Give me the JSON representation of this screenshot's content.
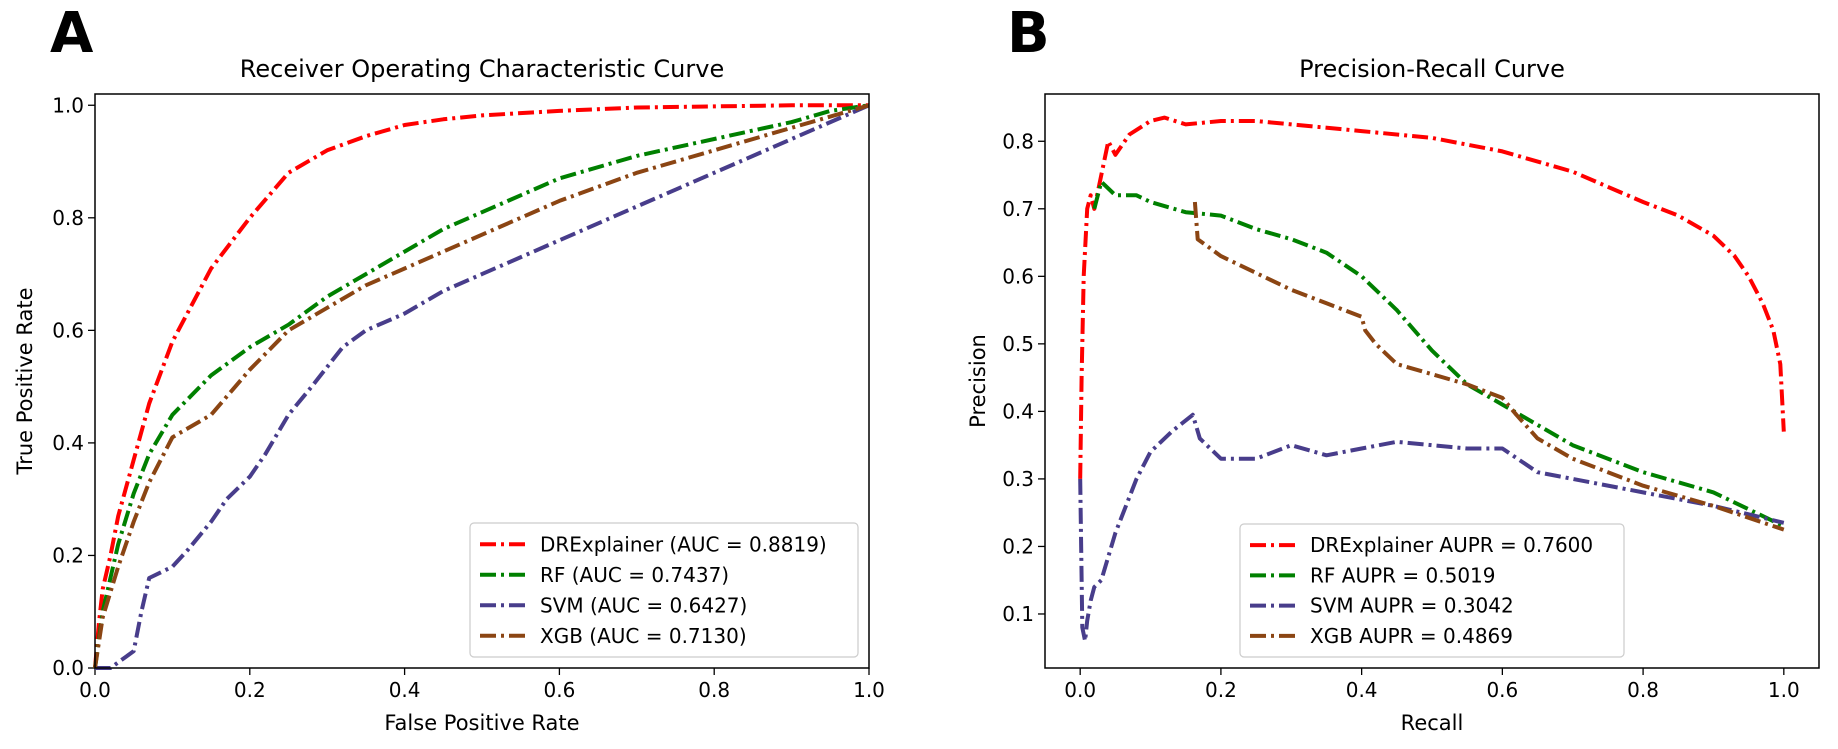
{
  "chart_data": [
    {
      "panel": "A",
      "type": "line",
      "title": "Receiver Operating Characteristic Curve",
      "xlabel": "False Positive Rate",
      "ylabel": "True Positive Rate",
      "xlim": [
        0.0,
        1.0
      ],
      "ylim": [
        0.0,
        1.02
      ],
      "xticks": [
        0.0,
        0.2,
        0.4,
        0.6,
        0.8,
        1.0
      ],
      "yticks": [
        0.0,
        0.2,
        0.4,
        0.6,
        0.8,
        1.0
      ],
      "xtick_labels": [
        "0.0",
        "0.2",
        "0.4",
        "0.6",
        "0.8",
        "1.0"
      ],
      "ytick_labels": [
        "0.0",
        "0.2",
        "0.4",
        "0.6",
        "0.8",
        "1.0"
      ],
      "grid": false,
      "legend_position": "lower-right",
      "series": [
        {
          "name": "DRExplainer (AUC = 0.8819)",
          "color": "#ff0000",
          "x": [
            0.0,
            0.005,
            0.01,
            0.02,
            0.03,
            0.05,
            0.07,
            0.1,
            0.15,
            0.2,
            0.25,
            0.3,
            0.35,
            0.4,
            0.45,
            0.5,
            0.6,
            0.7,
            0.8,
            0.9,
            1.0
          ],
          "y": [
            0.0,
            0.08,
            0.14,
            0.2,
            0.27,
            0.37,
            0.47,
            0.58,
            0.71,
            0.8,
            0.88,
            0.92,
            0.945,
            0.965,
            0.975,
            0.982,
            0.99,
            0.996,
            0.998,
            1.0,
            1.0
          ]
        },
        {
          "name": "RF (AUC = 0.7437)",
          "color": "#008000",
          "x": [
            0.0,
            0.01,
            0.03,
            0.05,
            0.07,
            0.1,
            0.15,
            0.2,
            0.25,
            0.3,
            0.35,
            0.4,
            0.45,
            0.5,
            0.55,
            0.6,
            0.7,
            0.8,
            0.9,
            0.95,
            1.0
          ],
          "y": [
            0.0,
            0.1,
            0.22,
            0.31,
            0.38,
            0.45,
            0.52,
            0.57,
            0.61,
            0.66,
            0.7,
            0.74,
            0.78,
            0.81,
            0.84,
            0.87,
            0.91,
            0.94,
            0.97,
            0.99,
            1.0
          ]
        },
        {
          "name": "SVM (AUC = 0.6427)",
          "color": "#483d8b",
          "x": [
            0.0,
            0.02,
            0.04,
            0.05,
            0.06,
            0.07,
            0.1,
            0.12,
            0.15,
            0.17,
            0.2,
            0.22,
            0.25,
            0.28,
            0.32,
            0.35,
            0.4,
            0.45,
            0.5,
            0.6,
            0.7,
            0.8,
            0.9,
            1.0
          ],
          "y": [
            0.0,
            0.0,
            0.02,
            0.03,
            0.1,
            0.16,
            0.18,
            0.21,
            0.26,
            0.3,
            0.34,
            0.38,
            0.45,
            0.5,
            0.57,
            0.6,
            0.63,
            0.67,
            0.7,
            0.76,
            0.82,
            0.88,
            0.94,
            1.0
          ]
        },
        {
          "name": "XGB (AUC = 0.7130)",
          "color": "#8b4513",
          "x": [
            0.0,
            0.01,
            0.03,
            0.05,
            0.07,
            0.1,
            0.15,
            0.2,
            0.25,
            0.3,
            0.35,
            0.4,
            0.45,
            0.5,
            0.55,
            0.6,
            0.7,
            0.8,
            0.9,
            1.0
          ],
          "y": [
            0.0,
            0.09,
            0.18,
            0.26,
            0.33,
            0.41,
            0.45,
            0.53,
            0.6,
            0.64,
            0.68,
            0.71,
            0.74,
            0.77,
            0.8,
            0.83,
            0.88,
            0.92,
            0.96,
            1.0
          ]
        }
      ]
    },
    {
      "panel": "B",
      "type": "line",
      "title": "Precision-Recall Curve",
      "xlabel": "Recall",
      "ylabel": "Precision",
      "xlim": [
        -0.05,
        1.05
      ],
      "ylim": [
        0.02,
        0.87
      ],
      "xticks": [
        0.0,
        0.2,
        0.4,
        0.6,
        0.8,
        1.0
      ],
      "yticks": [
        0.1,
        0.2,
        0.3,
        0.4,
        0.5,
        0.6,
        0.7,
        0.8
      ],
      "xtick_labels": [
        "0.0",
        "0.2",
        "0.4",
        "0.6",
        "0.8",
        "1.0"
      ],
      "ytick_labels": [
        "0.1",
        "0.2",
        "0.3",
        "0.4",
        "0.5",
        "0.6",
        "0.7",
        "0.8"
      ],
      "grid": false,
      "legend_position": "lower-center",
      "series": [
        {
          "name": "DRExplainer AUPR = 0.7600",
          "color": "#ff0000",
          "x": [
            0.0,
            0.002,
            0.005,
            0.01,
            0.015,
            0.02,
            0.03,
            0.04,
            0.05,
            0.07,
            0.1,
            0.12,
            0.15,
            0.2,
            0.25,
            0.3,
            0.4,
            0.5,
            0.6,
            0.7,
            0.8,
            0.85,
            0.9,
            0.93,
            0.95,
            0.97,
            0.985,
            0.995,
            1.0
          ],
          "y": [
            0.3,
            0.45,
            0.6,
            0.7,
            0.72,
            0.7,
            0.75,
            0.8,
            0.78,
            0.81,
            0.83,
            0.835,
            0.825,
            0.83,
            0.83,
            0.825,
            0.815,
            0.805,
            0.785,
            0.755,
            0.71,
            0.69,
            0.66,
            0.63,
            0.6,
            0.56,
            0.52,
            0.47,
            0.37
          ]
        },
        {
          "name": "RF AUPR = 0.5019",
          "color": "#008000",
          "x": [
            0.02,
            0.03,
            0.05,
            0.08,
            0.1,
            0.15,
            0.2,
            0.25,
            0.3,
            0.35,
            0.4,
            0.45,
            0.5,
            0.55,
            0.6,
            0.65,
            0.7,
            0.8,
            0.9,
            1.0
          ],
          "y": [
            0.7,
            0.74,
            0.72,
            0.72,
            0.71,
            0.695,
            0.69,
            0.67,
            0.655,
            0.635,
            0.6,
            0.55,
            0.49,
            0.44,
            0.41,
            0.38,
            0.35,
            0.31,
            0.28,
            0.23
          ]
        },
        {
          "name": "SVM AUPR = 0.3042",
          "color": "#483d8b",
          "x": [
            0.0,
            0.003,
            0.007,
            0.01,
            0.015,
            0.02,
            0.03,
            0.05,
            0.08,
            0.1,
            0.13,
            0.16,
            0.17,
            0.18,
            0.2,
            0.25,
            0.3,
            0.35,
            0.4,
            0.45,
            0.5,
            0.55,
            0.6,
            0.65,
            0.7,
            0.8,
            0.9,
            1.0
          ],
          "y": [
            0.3,
            0.08,
            0.06,
            0.09,
            0.12,
            0.14,
            0.15,
            0.22,
            0.3,
            0.34,
            0.37,
            0.395,
            0.36,
            0.35,
            0.33,
            0.33,
            0.35,
            0.335,
            0.345,
            0.355,
            0.35,
            0.345,
            0.345,
            0.31,
            0.3,
            0.28,
            0.26,
            0.235
          ]
        },
        {
          "name": "XGB AUPR = 0.4869",
          "color": "#8b4513",
          "x": [
            0.163,
            0.167,
            0.2,
            0.25,
            0.3,
            0.35,
            0.4,
            0.405,
            0.42,
            0.45,
            0.5,
            0.55,
            0.6,
            0.62,
            0.65,
            0.7,
            0.8,
            0.9,
            1.0
          ],
          "y": [
            0.71,
            0.655,
            0.63,
            0.605,
            0.58,
            0.56,
            0.54,
            0.52,
            0.5,
            0.47,
            0.455,
            0.44,
            0.42,
            0.395,
            0.36,
            0.33,
            0.29,
            0.26,
            0.225
          ]
        }
      ]
    }
  ]
}
